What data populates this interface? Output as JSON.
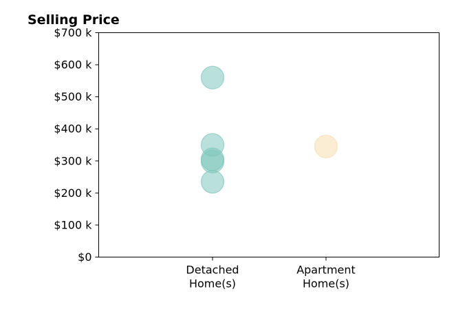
{
  "chart_data": {
    "type": "scatter",
    "title": "Selling Price",
    "xlabel": "",
    "ylabel": "",
    "categories": [
      "Detached\nHome(s)",
      "Apartment\nHome(s)"
    ],
    "ylim": [
      0,
      700000
    ],
    "yticks": [
      {
        "value": 0,
        "label": "$0"
      },
      {
        "value": 100000,
        "label": "$100 k"
      },
      {
        "value": 200000,
        "label": "$200 k"
      },
      {
        "value": 300000,
        "label": "$300 k"
      },
      {
        "value": 400000,
        "label": "$400 k"
      },
      {
        "value": 500000,
        "label": "$500 k"
      },
      {
        "value": 600000,
        "label": "$600 k"
      },
      {
        "value": 700000,
        "label": "$700 k"
      }
    ],
    "grid": false,
    "legend": "none",
    "series": [
      {
        "category": "Detached\nHome(s)",
        "color": "#7fc6bc",
        "values": [
          560000,
          350000,
          305000,
          298000,
          235000
        ]
      },
      {
        "category": "Apartment\nHome(s)",
        "color": "#f5deb0",
        "values": [
          345000
        ]
      }
    ]
  }
}
